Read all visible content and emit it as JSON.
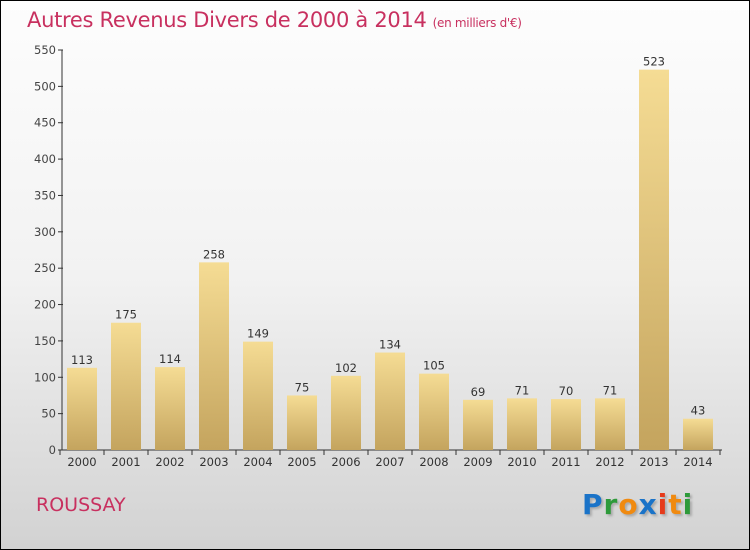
{
  "chart_data": {
    "type": "bar",
    "title": "Autres Revenus Divers de 2000 à 2014",
    "unit": "(en milliers d'€)",
    "categories": [
      "2000",
      "2001",
      "2002",
      "2003",
      "2004",
      "2005",
      "2006",
      "2007",
      "2008",
      "2009",
      "2010",
      "2011",
      "2012",
      "2013",
      "2014"
    ],
    "values": [
      113,
      175,
      114,
      258,
      149,
      75,
      102,
      134,
      105,
      69,
      71,
      70,
      71,
      523,
      43
    ],
    "ylim": [
      0,
      550
    ],
    "yticks": [
      0,
      50,
      100,
      150,
      200,
      250,
      300,
      350,
      400,
      450,
      500,
      550
    ],
    "xlabel": "",
    "ylabel": "",
    "grid": false,
    "colors": {
      "bar_top": "#f5dc94",
      "bar_bottom": "#c4a45e",
      "title": "#c8305f"
    }
  },
  "place": "ROUSSAY",
  "logo": "Proxiti"
}
